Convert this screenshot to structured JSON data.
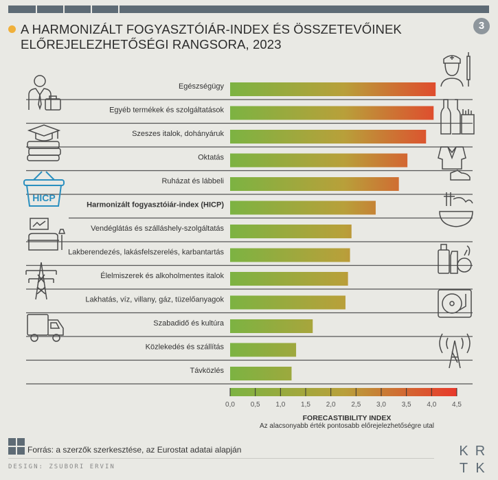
{
  "title": {
    "line1": "A HARMONIZÁLT FOGYASZTÓIÁR-INDEX ÉS ÖSSZETEVŐINEK",
    "line2": "ELŐREJELEZHETŐSÉGI RANGSORA, 2023"
  },
  "badge": "3",
  "chart_data": {
    "type": "bar",
    "orientation": "horizontal",
    "categories": [
      "Egészségügy",
      "Egyéb termékek és szolgáltatások",
      "Szeszes italok, dohányáruk",
      "Oktatás",
      "Ruházat és lábbeli",
      "Harmonizált fogyasztóiár-index (HICP)",
      "Vendéglátás és szálláshely-szolgáltatás",
      "Lakberendezés, lakásfelszerelés, karbantartás",
      "Élelmiszerek és alkoholmentes italok",
      "Lakhatás, víz, villany, gáz, tüzelőanyagok",
      "Szabadidő és kultúra",
      "Közlekedés és szállítás",
      "Távközlés"
    ],
    "highlight": "Harmonizált fogyasztóiár-index (HICP)",
    "values": [
      4.08,
      4.04,
      3.89,
      3.52,
      3.35,
      2.89,
      2.41,
      2.38,
      2.34,
      2.29,
      1.64,
      1.31,
      1.22
    ],
    "xlim": [
      0,
      4.5
    ],
    "xticks": [
      "0,0",
      "0,5",
      "1,0",
      "1,5",
      "2,0",
      "2,5",
      "3,0",
      "3,5",
      "4,0",
      "4,5"
    ],
    "xlabel": "FORECASTIBILITY INDEX",
    "xsublabel": "Az alacsonyabb érték pontosabb előrejelezhetőségre utal",
    "colors": {
      "low": "#7cb342",
      "high": "#e8392b"
    }
  },
  "source": "Forrás: a szerzők szerkesztése, az Eurostat adatai alapján",
  "design": "DESIGN: ZSUBORI ERVIN",
  "logo": [
    "K",
    "R",
    "T",
    "K"
  ],
  "icons": {
    "basket_label": "HICP",
    "left": [
      "businessman-icon",
      "books-graduation-cap-icon",
      "hicp-basket-icon",
      "living-room-icon",
      "power-pylon-icon",
      "truck-icon"
    ],
    "right": [
      "nurse-syringe-icon",
      "bottles-cigarettes-icon",
      "clothing-shoe-icon",
      "food-bowl-icon",
      "grocery-icon",
      "turntable-icon",
      "radio-tower-icon"
    ]
  }
}
